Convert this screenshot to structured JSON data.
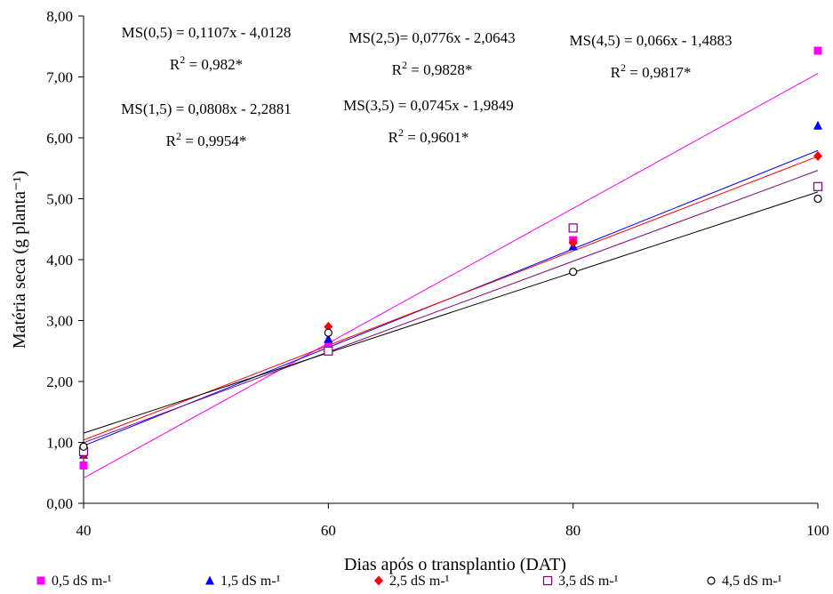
{
  "chart_data": {
    "type": "scatter",
    "xlabel": "Dias após o transplantio (DAT)",
    "ylabel": "Matéria seca (g planta⁻¹)",
    "x": [
      40,
      60,
      80,
      100
    ],
    "xlim": [
      40,
      100
    ],
    "ylim": [
      0,
      8
    ],
    "x_ticks": [
      "40",
      "60",
      "80",
      "100"
    ],
    "y_ticks": [
      "0,00",
      "1,00",
      "2,00",
      "3,00",
      "4,00",
      "5,00",
      "6,00",
      "7,00",
      "8,00"
    ],
    "grid": false,
    "legend_position": "bottom",
    "series": [
      {
        "name": "0,5 dS m-¹",
        "marker": "filled-square",
        "color": "#ff00ff",
        "values": [
          0.62,
          2.6,
          4.32,
          7.43
        ],
        "fit": {
          "slope": 0.1107,
          "intercept": -4.0128
        }
      },
      {
        "name": "1,5 dS m-¹",
        "marker": "filled-triangle",
        "color": "#0000ff",
        "values": [
          0.8,
          2.7,
          4.22,
          6.2
        ],
        "fit": {
          "slope": 0.0808,
          "intercept": -2.2881
        }
      },
      {
        "name": "2,5 dS m-¹",
        "marker": "filled-diamond",
        "color": "#ff0000",
        "values": [
          0.8,
          2.9,
          4.28,
          5.7
        ],
        "fit": {
          "slope": 0.0776,
          "intercept": -2.0643
        }
      },
      {
        "name": "3,5 dS m-¹",
        "marker": "open-square",
        "color": "#800080",
        "values": [
          0.85,
          2.5,
          4.52,
          5.2
        ],
        "fit": {
          "slope": 0.0745,
          "intercept": -1.9849
        }
      },
      {
        "name": "4,5 dS m-¹",
        "marker": "open-circle",
        "color": "#000000",
        "values": [
          0.93,
          2.8,
          3.8,
          5.0
        ],
        "fit": {
          "slope": 0.066,
          "intercept": -1.4883
        }
      }
    ],
    "annotations": [
      {
        "equation": "MS(0,5) = 0,1107x - 4,0128",
        "r2_prefix": "R",
        "r2_value": " = 0,982*"
      },
      {
        "equation": "MS(2,5)= 0,0776x - 2,0643",
        "r2_prefix": "R",
        "r2_value": " = 0,9828*"
      },
      {
        "equation": "MS(4,5) = 0,066x - 1,4883",
        "r2_prefix": "R",
        "r2_value": " = 0,9817*"
      },
      {
        "equation": "MS(1,5) = 0,0808x - 2,2881",
        "r2_prefix": "R",
        "r2_value": " = 0,9954*"
      },
      {
        "equation": "MS(3,5) = 0,0745x - 1,9849",
        "r2_prefix": "R",
        "r2_value": " = 0,9601*"
      }
    ]
  }
}
